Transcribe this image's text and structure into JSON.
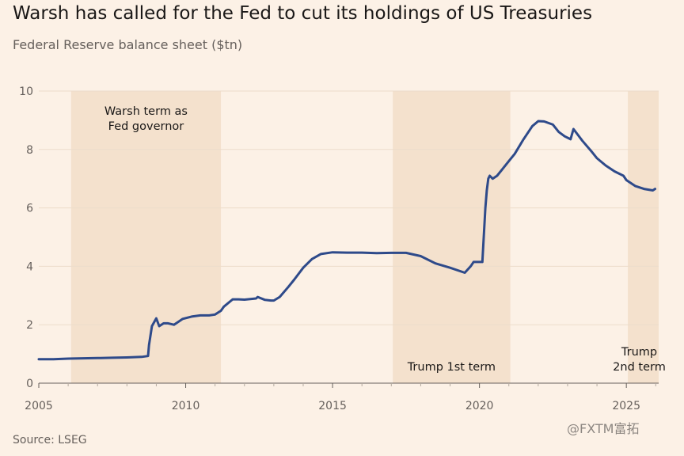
{
  "title": "Warsh has called for the Fed to cut its holdings of US Treasuries",
  "subtitle": "Federal Reserve balance sheet ($tn)",
  "source": "Source: LSEG",
  "watermark": "@FXTM富拓",
  "colors": {
    "background": "#fcf1e6",
    "shade": "#f4e1cd",
    "line": "#2e4a8a",
    "grid": "#ecdccb"
  },
  "chart_data": {
    "type": "line",
    "title": "Warsh has called for the Fed to cut its holdings of US Treasuries",
    "subtitle": "Federal Reserve balance sheet ($tn)",
    "xlabel": "",
    "ylabel": "",
    "xlim": [
      2005,
      2026.1
    ],
    "ylim": [
      0,
      10
    ],
    "yticks": [
      0,
      2,
      4,
      6,
      8,
      10
    ],
    "xticks": [
      2005,
      2010,
      2015,
      2020,
      2025
    ],
    "grid": true,
    "shaded_periods": [
      {
        "start": 2006.1,
        "end": 2011.2,
        "label_lines": [
          "Warsh term as",
          "Fed governor"
        ],
        "label_position": "top"
      },
      {
        "start": 2017.05,
        "end": 2021.05,
        "label_lines": [
          "Trump 1st term"
        ],
        "label_position": "bottom"
      },
      {
        "start": 2025.05,
        "end": 2026.1,
        "label_lines": [
          "Trump",
          "2nd term"
        ],
        "label_position": "bottom"
      }
    ],
    "series": [
      {
        "name": "Federal Reserve balance sheet",
        "x": [
          2005,
          2005.5,
          2006,
          2006.5,
          2007,
          2007.5,
          2008,
          2008.5,
          2008.72,
          2008.75,
          2008.85,
          2009.0,
          2009.1,
          2009.25,
          2009.4,
          2009.6,
          2009.75,
          2009.9,
          2010.2,
          2010.5,
          2010.8,
          2011.0,
          2011.2,
          2011.3,
          2011.6,
          2011.8,
          2012.0,
          2012.4,
          2012.45,
          2012.7,
          2012.9,
          2013.0,
          2013.2,
          2013.5,
          2013.7,
          2014.0,
          2014.3,
          2014.6,
          2015.0,
          2015.5,
          2016.0,
          2016.5,
          2017.0,
          2017.5,
          2018.0,
          2018.5,
          2019.0,
          2019.5,
          2019.7,
          2019.8,
          2019.95,
          2020.1,
          2020.2,
          2020.25,
          2020.3,
          2020.35,
          2020.45,
          2020.6,
          2020.8,
          2021.0,
          2021.2,
          2021.5,
          2021.8,
          2022.0,
          2022.2,
          2022.5,
          2022.7,
          2022.9,
          2023.1,
          2023.2,
          2023.35,
          2023.5,
          2023.8,
          2024.0,
          2024.3,
          2024.6,
          2024.9,
          2025.0,
          2025.3,
          2025.6,
          2025.9,
          2025.98
        ],
        "y": [
          0.82,
          0.82,
          0.84,
          0.85,
          0.86,
          0.87,
          0.88,
          0.9,
          0.93,
          1.3,
          1.95,
          2.22,
          1.95,
          2.05,
          2.05,
          2.0,
          2.1,
          2.2,
          2.28,
          2.32,
          2.32,
          2.35,
          2.48,
          2.62,
          2.87,
          2.87,
          2.86,
          2.9,
          2.95,
          2.85,
          2.83,
          2.83,
          2.95,
          3.3,
          3.55,
          3.95,
          4.25,
          4.42,
          4.48,
          4.47,
          4.47,
          4.45,
          4.46,
          4.46,
          4.35,
          4.1,
          3.95,
          3.78,
          4.0,
          4.15,
          4.15,
          4.15,
          6.0,
          6.6,
          7.0,
          7.1,
          7.0,
          7.1,
          7.35,
          7.6,
          7.85,
          8.35,
          8.8,
          8.97,
          8.96,
          8.85,
          8.6,
          8.45,
          8.35,
          8.7,
          8.5,
          8.3,
          7.95,
          7.7,
          7.45,
          7.25,
          7.1,
          6.95,
          6.75,
          6.65,
          6.6,
          6.65
        ]
      }
    ]
  }
}
